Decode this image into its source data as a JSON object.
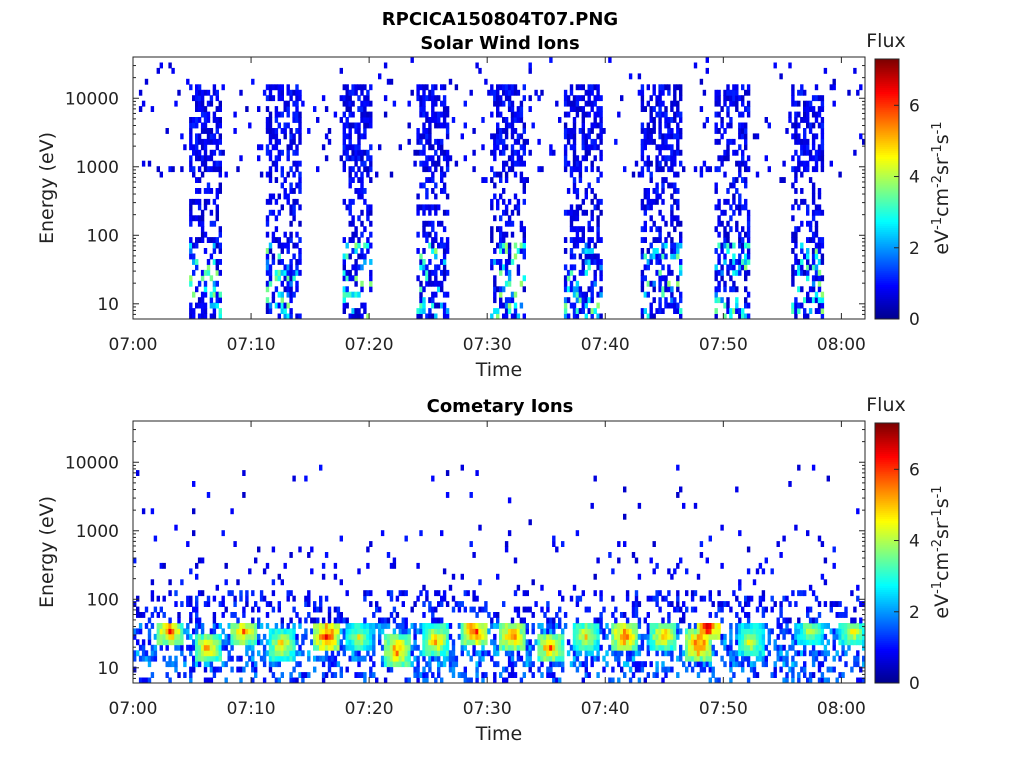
{
  "figure": {
    "title": "RPCICA150804T07.PNG"
  },
  "colormap": {
    "name": "jet",
    "stops": [
      "#00008f",
      "#0000ff",
      "#0080ff",
      "#00ffff",
      "#80ff80",
      "#ffff00",
      "#ff8000",
      "#ff0000",
      "#800000"
    ]
  },
  "chart_data": [
    {
      "type": "heatmap",
      "title": "Solar Wind Ions",
      "xlabel": "Time",
      "ylabel": "Energy (eV)",
      "x_tick_labels": [
        "07:00",
        "07:10",
        "07:20",
        "07:30",
        "07:40",
        "07:50",
        "08:00"
      ],
      "x_tick_minutes": [
        0,
        10,
        20,
        30,
        40,
        50,
        60
      ],
      "xlim_minutes": [
        0,
        62
      ],
      "y_scale": "log",
      "ylim": [
        6,
        40000
      ],
      "y_tick_labels": [
        "10",
        "100",
        "1000",
        "10000"
      ],
      "y_tick_values": [
        10,
        100,
        1000,
        10000
      ],
      "colorbar": {
        "title": "Flux",
        "label": "eV-1cm-2sr-1s-1",
        "range": [
          0,
          7.3
        ],
        "tick_values": [
          0,
          2,
          4,
          6
        ],
        "tick_labels": [
          "0",
          "2",
          "4",
          "6"
        ]
      },
      "bursts_minutes": [
        [
          4.7,
          7.3
        ],
        [
          11.1,
          14.1
        ],
        [
          17.6,
          20.2
        ],
        [
          23.8,
          26.6
        ],
        [
          30.1,
          33.1
        ],
        [
          36.4,
          39.6
        ],
        [
          42.8,
          46.3
        ],
        [
          49.1,
          52.1
        ],
        [
          55.6,
          58.4
        ]
      ],
      "burst_flux": {
        "energy_band_eV": [
          6,
          16000
        ],
        "typical": 1.0,
        "low_energy_peak": 3.5
      },
      "background_flux": {
        "energy_band_eV": [
          600,
          40000
        ],
        "typical": 0.8
      }
    },
    {
      "type": "heatmap",
      "title": "Cometary Ions",
      "xlabel": "Time",
      "ylabel": "Energy (eV)",
      "x_tick_labels": [
        "07:00",
        "07:10",
        "07:20",
        "07:30",
        "07:40",
        "07:50",
        "08:00"
      ],
      "x_tick_minutes": [
        0,
        10,
        20,
        30,
        40,
        50,
        60
      ],
      "xlim_minutes": [
        0,
        62
      ],
      "y_scale": "log",
      "ylim": [
        6,
        40000
      ],
      "y_tick_labels": [
        "10",
        "100",
        "1000",
        "10000"
      ],
      "y_tick_values": [
        10,
        100,
        1000,
        10000
      ],
      "colorbar": {
        "title": "Flux",
        "label": "eV-1cm-2sr-1s-1",
        "range": [
          0,
          7.3
        ],
        "tick_values": [
          0,
          2,
          4,
          6
        ],
        "tick_labels": [
          "0",
          "2",
          "4",
          "6"
        ]
      },
      "hot_band_eV": [
        10,
        45
      ],
      "hot_blobs": [
        {
          "t": 3.0,
          "e": 35,
          "flux": 6.0
        },
        {
          "t": 6.2,
          "e": 20,
          "flux": 5.5
        },
        {
          "t": 9.2,
          "e": 35,
          "flux": 5.8
        },
        {
          "t": 12.5,
          "e": 22,
          "flux": 5.2
        },
        {
          "t": 16.3,
          "e": 30,
          "flux": 6.8
        },
        {
          "t": 19.0,
          "e": 28,
          "flux": 4.5
        },
        {
          "t": 22.2,
          "e": 18,
          "flux": 6.0
        },
        {
          "t": 25.5,
          "e": 25,
          "flux": 5.5
        },
        {
          "t": 28.8,
          "e": 35,
          "flux": 6.5
        },
        {
          "t": 32.0,
          "e": 30,
          "flux": 6.0
        },
        {
          "t": 35.2,
          "e": 20,
          "flux": 5.8
        },
        {
          "t": 38.3,
          "e": 30,
          "flux": 5.0
        },
        {
          "t": 41.5,
          "e": 30,
          "flux": 6.2
        },
        {
          "t": 44.8,
          "e": 30,
          "flux": 5.5
        },
        {
          "t": 47.8,
          "e": 22,
          "flux": 6.5
        },
        {
          "t": 48.6,
          "e": 40,
          "flux": 7.0
        },
        {
          "t": 52.2,
          "e": 25,
          "flux": 4.8
        },
        {
          "t": 57.3,
          "e": 35,
          "flux": 4.5
        },
        {
          "t": 60.8,
          "e": 35,
          "flux": 5.0
        }
      ],
      "mid_flux": {
        "energy_band_eV": [
          45,
          140
        ],
        "typical": 1.0
      },
      "background_flux": {
        "energy_band_eV": [
          140,
          10000
        ],
        "typical": 0.9
      }
    }
  ]
}
